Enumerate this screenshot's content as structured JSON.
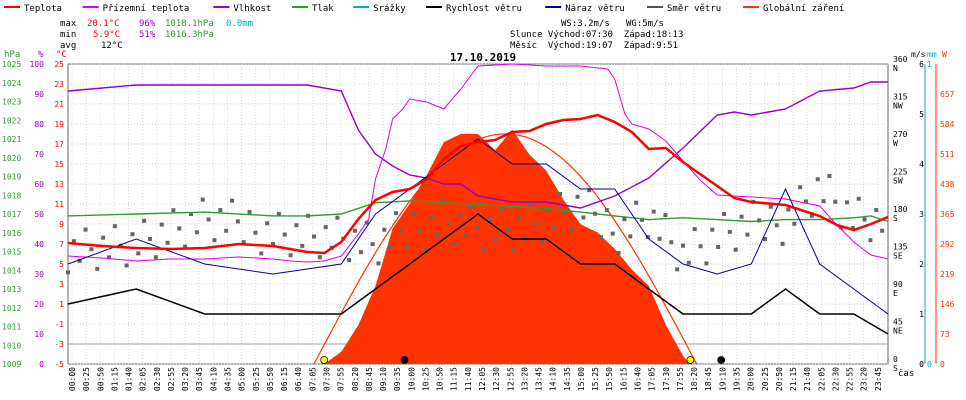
{
  "chart_data": {
    "type": "line",
    "title": "17.10.2019",
    "legend": [
      {
        "name": "Teplota",
        "color": "#ff0000"
      },
      {
        "name": "Přízemní teplota",
        "color": "#dd00dd"
      },
      {
        "name": "Vlhkost",
        "color": "#9900cc"
      },
      {
        "name": "Tlak",
        "color": "#339933"
      },
      {
        "name": "Srážky",
        "color": "#00aacc"
      },
      {
        "name": "Rychlost větru",
        "color": "#000000"
      },
      {
        "name": "Náraz větru",
        "color": "#000099"
      },
      {
        "name": "Směr větru",
        "color": "#555555"
      },
      {
        "name": "Globální záření",
        "color": "#ff3300"
      }
    ],
    "stats": {
      "max_label": "max",
      "max_temp": "20.1°C",
      "max_hum": "96%",
      "max_press": "1018.1hPa",
      "max_rain": "0.0mm",
      "min_label": "min",
      "min_temp": "5.9°C",
      "min_hum": "51%",
      "min_press": "1016.3hPa",
      "avg_label": "avg",
      "avg_temp": "12°C"
    },
    "info": {
      "ws": "WS:3.2m/s",
      "wg": "WG:5m/s",
      "sun": "Slunce Východ:07:30  Západ:18:13",
      "moon": "Měsíc  Východ:19:07  Západ:9:51"
    },
    "axis_units": {
      "hpa": "hPa",
      "pct": "%",
      "degc": "°C",
      "ms": "m/s",
      "mm": "mm",
      "w": "W",
      "time": "čas"
    },
    "axes": {
      "hpa_ticks": [
        1009,
        1010,
        1011,
        1012,
        1013,
        1014,
        1015,
        1016,
        1017,
        1018,
        1019,
        1020,
        1021,
        1022,
        1023,
        1024,
        1025
      ],
      "pct_ticks": [
        0,
        10,
        20,
        30,
        40,
        50,
        60,
        70,
        80,
        90,
        100
      ],
      "temp_ticks": [
        -5,
        -3,
        -1,
        1,
        3,
        5,
        7,
        9,
        11,
        13,
        15,
        17,
        19,
        21,
        23,
        25
      ],
      "dir_ticks": [
        "0",
        "45",
        "90",
        "135",
        "180",
        "225",
        "270",
        "315",
        "360"
      ],
      "dir_letters": [
        "S",
        "NE",
        "E",
        "SE",
        "S",
        "SW",
        "W",
        "NW",
        "N"
      ],
      "ms_ticks": [
        0,
        1,
        2,
        3,
        4,
        5,
        6
      ],
      "mm_ticks": [
        0,
        1
      ],
      "w_ticks": [
        0,
        73,
        146,
        219,
        292,
        365,
        438,
        511,
        584,
        657
      ],
      "x_ticks": [
        "00:00",
        "00:25",
        "00:50",
        "01:15",
        "01:40",
        "02:05",
        "02:30",
        "02:55",
        "03:20",
        "03:45",
        "04:10",
        "04:35",
        "05:00",
        "05:25",
        "05:50",
        "06:15",
        "06:40",
        "07:05",
        "07:30",
        "07:55",
        "08:20",
        "08:45",
        "09:10",
        "09:35",
        "10:00",
        "10:25",
        "10:50",
        "11:15",
        "11:40",
        "12:05",
        "12:30",
        "12:55",
        "13:20",
        "13:45",
        "14:10",
        "14:35",
        "15:00",
        "15:25",
        "15:50",
        "16:15",
        "16:40",
        "17:05",
        "17:30",
        "17:55",
        "18:20",
        "18:45",
        "19:10",
        "19:35",
        "20:00",
        "20:25",
        "20:50",
        "21:15",
        "21:40",
        "22:05",
        "22:30",
        "22:55",
        "23:20",
        "23:45"
      ]
    },
    "series": [
      {
        "name": "Teplota",
        "unit": "°C",
        "x_hours": [
          0,
          1,
          2,
          3,
          4,
          5,
          6,
          7,
          7.5,
          8,
          8.5,
          9,
          9.5,
          10,
          10.5,
          11,
          11.5,
          12,
          12.5,
          13,
          13.5,
          14,
          14.5,
          15,
          15.5,
          16,
          16.5,
          17,
          17.5,
          18,
          18.5,
          19,
          19.5,
          20,
          21,
          22,
          22.5,
          23,
          23.5,
          24
        ],
        "values": [
          7.1,
          6.8,
          6.6,
          6.5,
          6.6,
          7.0,
          6.8,
          6.2,
          6.1,
          7.2,
          9.5,
          11.4,
          12.2,
          12.5,
          13.5,
          15.5,
          16.8,
          17.2,
          17.4,
          18.2,
          18.3,
          19.0,
          19.4,
          19.5,
          19.9,
          19.2,
          18.2,
          16.5,
          16.6,
          15.2,
          14.0,
          12.8,
          11.6,
          11.2,
          10.9,
          9.8,
          8.9,
          8.4,
          9.0,
          9.7
        ]
      },
      {
        "name": "Přízemní teplota",
        "unit": "°C",
        "x_hours": [
          0,
          1,
          2,
          3,
          4,
          5,
          6,
          6.5,
          7,
          7.5,
          8,
          8.5,
          8.8,
          9,
          9.3,
          9.5,
          9.8,
          10,
          10.5,
          11,
          11.5,
          12,
          13,
          14,
          15,
          15.8,
          16,
          16.3,
          16.5,
          17,
          17.5,
          18,
          18.5,
          19,
          20,
          21,
          22,
          22.5,
          23,
          23.5,
          24
        ],
        "values": [
          5.8,
          5.6,
          5.3,
          5.5,
          5.5,
          5.7,
          5.5,
          5.3,
          5.2,
          5.3,
          5.8,
          8.0,
          9.5,
          13.5,
          16.5,
          19.5,
          20.5,
          21.5,
          21.2,
          20.5,
          22.5,
          24.8,
          25.0,
          24.8,
          24.8,
          24.5,
          23.5,
          20.0,
          19.0,
          18.5,
          17.3,
          15.3,
          13.4,
          11.9,
          11.7,
          11.5,
          10.8,
          8.9,
          7.2,
          5.9,
          5.5
        ]
      },
      {
        "name": "Vlhkost",
        "unit": "%",
        "x_hours": [
          0,
          1,
          2,
          3,
          4,
          5,
          6,
          7,
          8,
          8.5,
          9,
          9.5,
          10,
          10.5,
          11,
          11.5,
          12,
          12.5,
          13,
          13.5,
          14,
          14.5,
          15,
          16,
          17,
          18,
          19,
          19.5,
          20,
          20.5,
          21,
          21.5,
          22,
          23,
          23.5,
          24
        ],
        "values": [
          91,
          92,
          93,
          93,
          93,
          93,
          93,
          93,
          91,
          78,
          70,
          66,
          63,
          62,
          60,
          60,
          56,
          55,
          54,
          54,
          54,
          53,
          52,
          56,
          62,
          72,
          83,
          84,
          83,
          84,
          85,
          88,
          91,
          92,
          94,
          94
        ]
      },
      {
        "name": "Tlak",
        "unit": "hPa",
        "x_hours": [
          0,
          2,
          4,
          6,
          7,
          8,
          9,
          10,
          11,
          12,
          13,
          14,
          15,
          16,
          17,
          18,
          19,
          20,
          21,
          22,
          23,
          23.5,
          24
        ],
        "values": [
          1016.9,
          1017.0,
          1017.1,
          1016.9,
          1016.9,
          1017.0,
          1017.6,
          1017.7,
          1017.6,
          1017.5,
          1017.4,
          1017.3,
          1017.1,
          1016.9,
          1016.7,
          1016.8,
          1016.7,
          1016.6,
          1016.7,
          1016.7,
          1016.8,
          1016.9,
          1016.6
        ]
      },
      {
        "name": "Globální záření",
        "unit": "W",
        "x_hours": [
          7.5,
          8,
          8.5,
          9,
          9.5,
          10,
          10.5,
          11,
          11.5,
          12,
          12.5,
          13,
          13.5,
          14,
          14.5,
          15,
          15.5,
          16,
          16.5,
          17,
          17.5,
          18,
          18.2
        ],
        "values": [
          0,
          30,
          95,
          190,
          330,
          390,
          460,
          540,
          560,
          560,
          520,
          570,
          510,
          470,
          400,
          340,
          320,
          280,
          230,
          190,
          95,
          20,
          0
        ]
      },
      {
        "name": "Rychlost větru",
        "unit": "m/s",
        "x_hours": [
          0,
          2,
          4,
          6,
          8,
          9,
          10,
          11,
          12,
          13,
          14,
          15,
          16,
          17,
          18,
          19,
          20,
          21,
          22,
          23,
          24
        ],
        "values": [
          1.2,
          1.5,
          1.0,
          1.0,
          1.0,
          1.5,
          2.0,
          2.5,
          3.0,
          2.5,
          2.5,
          2.0,
          2.0,
          1.5,
          1.0,
          1.0,
          1.0,
          1.5,
          1.0,
          1.0,
          0.6
        ]
      },
      {
        "name": "Náraz větru",
        "unit": "m/s",
        "x_hours": [
          0,
          2,
          4,
          6,
          8,
          9,
          10,
          11,
          12,
          13,
          14,
          15,
          16,
          17,
          18,
          19,
          20,
          21,
          22,
          23,
          24
        ],
        "values": [
          2.0,
          2.5,
          2.0,
          1.8,
          2.0,
          3.0,
          3.5,
          4.0,
          4.5,
          4.0,
          4.0,
          3.5,
          3.5,
          2.5,
          2.0,
          1.8,
          2.0,
          3.5,
          2.0,
          1.5,
          1.0
        ]
      },
      {
        "name": "Směr větru",
        "unit": "°",
        "x_hours": [
          0,
          2,
          4,
          6,
          8,
          9,
          10,
          11,
          12,
          13,
          14,
          15,
          16,
          17,
          18,
          19,
          20,
          21,
          22,
          23,
          24
        ],
        "values": [
          140,
          145,
          170,
          160,
          150,
          140,
          160,
          175,
          165,
          160,
          170,
          185,
          160,
          180,
          130,
          150,
          165,
          175,
          215,
          175,
          170
        ]
      }
    ],
    "markers": [
      {
        "type": "sunrise",
        "time": "07:30"
      },
      {
        "type": "moonset",
        "time": "09:51"
      },
      {
        "type": "sunset",
        "time": "18:13"
      },
      {
        "type": "moonrise",
        "time": "19:07"
      }
    ]
  }
}
